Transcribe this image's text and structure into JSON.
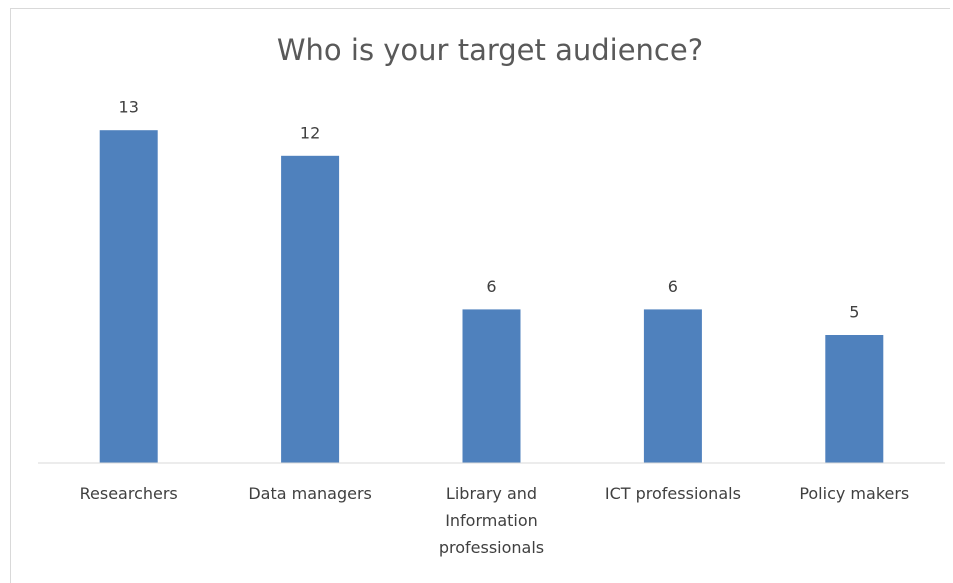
{
  "chart_data": {
    "type": "bar",
    "title": "Who is your target audience?",
    "categories": [
      "Researchers",
      "Data managers",
      "Library and Information professionals",
      "ICT professionals",
      "Policy makers"
    ],
    "values": [
      13,
      12,
      6,
      6,
      5
    ],
    "color": "#4f81bd",
    "ylim": [
      0,
      14
    ]
  }
}
